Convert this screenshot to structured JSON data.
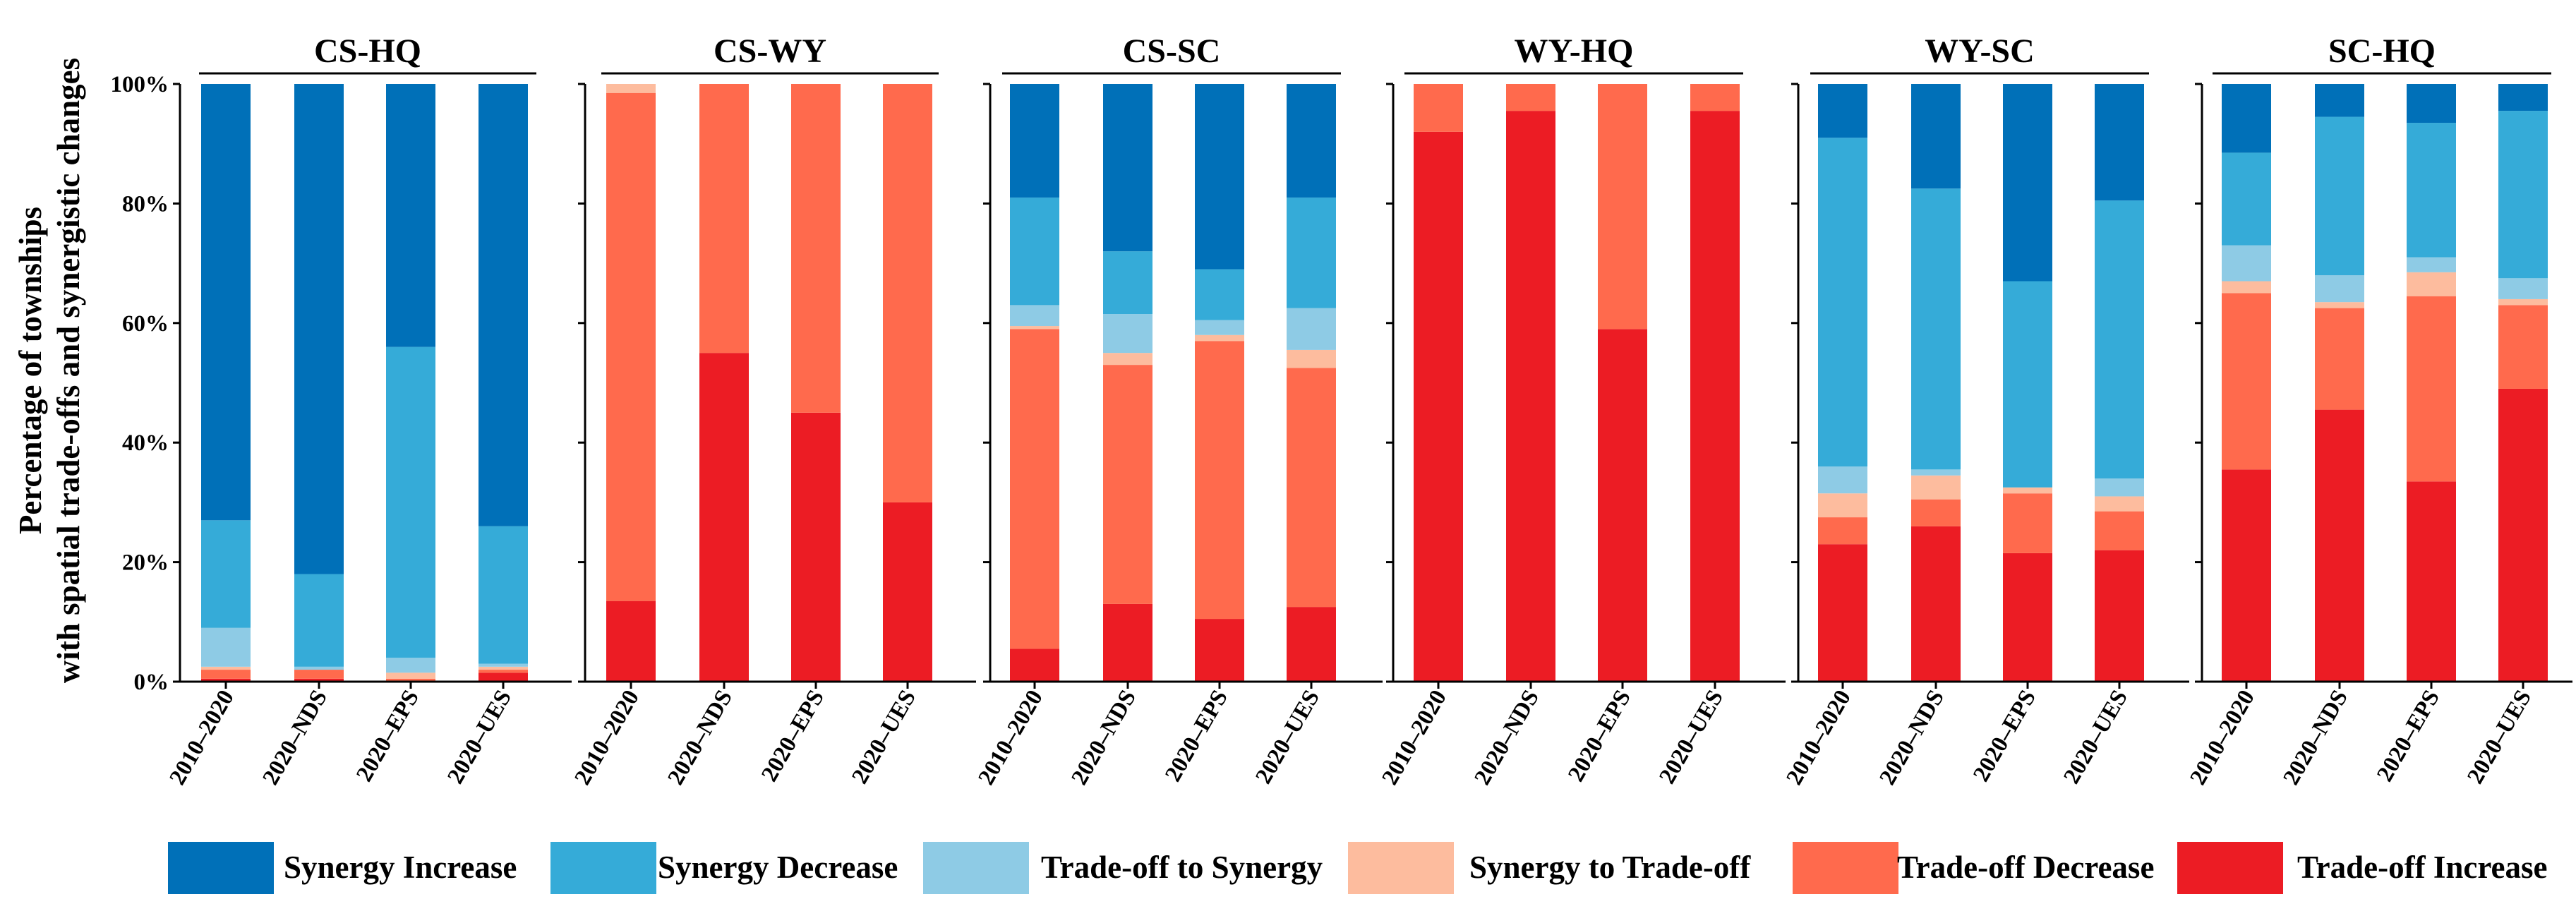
{
  "chart_data": {
    "type": "bar",
    "stacked": true,
    "ylabel_line1": "Percentage of townships",
    "ylabel_line2": "with spatial trade-offs and synergistic changes",
    "ylim": [
      0,
      100
    ],
    "yticks": [
      "0%",
      "20%",
      "40%",
      "60%",
      "80%",
      "100%"
    ],
    "categories": [
      "2010–2020",
      "2020–NDS",
      "2020–EPS",
      "2020–UES"
    ],
    "legend": [
      {
        "name": "Synergy Increase",
        "color": "#0070B8"
      },
      {
        "name": "Synergy Decrease",
        "color": "#35ABD8"
      },
      {
        "name": "Trade-off to Synergy",
        "color": "#8ECBE5"
      },
      {
        "name": "Synergy to Trade-off",
        "color": "#FDBC9E"
      },
      {
        "name": "Trade-off Decrease",
        "color": "#FF6A4D"
      },
      {
        "name": "Trade-off Increase",
        "color": "#EC1C24"
      }
    ],
    "panels": [
      {
        "title": "CS-HQ",
        "bars": [
          {
            "category": "2010–2020",
            "values": {
              "Trade-off Increase": 0.5,
              "Trade-off Decrease": 1.5,
              "Synergy to Trade-off": 0.5,
              "Trade-off to Synergy": 6.5,
              "Synergy Decrease": 18.0,
              "Synergy Increase": 73.0
            }
          },
          {
            "category": "2020–NDS",
            "values": {
              "Trade-off Increase": 0.5,
              "Trade-off Decrease": 1.5,
              "Synergy to Trade-off": 0.0,
              "Trade-off to Synergy": 0.5,
              "Synergy Decrease": 15.5,
              "Synergy Increase": 82.0
            }
          },
          {
            "category": "2020–EPS",
            "values": {
              "Trade-off Increase": 0.0,
              "Trade-off Decrease": 0.5,
              "Synergy to Trade-off": 1.0,
              "Trade-off to Synergy": 2.5,
              "Synergy Decrease": 52.0,
              "Synergy Increase": 44.0
            }
          },
          {
            "category": "2020–UES",
            "values": {
              "Trade-off Increase": 1.5,
              "Trade-off Decrease": 0.5,
              "Synergy to Trade-off": 0.5,
              "Trade-off to Synergy": 0.5,
              "Synergy Decrease": 23.0,
              "Synergy Increase": 74.0
            }
          }
        ]
      },
      {
        "title": "CS-WY",
        "bars": [
          {
            "category": "2010–2020",
            "values": {
              "Trade-off Increase": 13.5,
              "Trade-off Decrease": 85.0,
              "Synergy to Trade-off": 1.5,
              "Trade-off to Synergy": 0.0,
              "Synergy Decrease": 0.0,
              "Synergy Increase": 0.0
            }
          },
          {
            "category": "2020–NDS",
            "values": {
              "Trade-off Increase": 55.0,
              "Trade-off Decrease": 45.0,
              "Synergy to Trade-off": 0.0,
              "Trade-off to Synergy": 0.0,
              "Synergy Decrease": 0.0,
              "Synergy Increase": 0.0
            }
          },
          {
            "category": "2020–EPS",
            "values": {
              "Trade-off Increase": 45.0,
              "Trade-off Decrease": 55.0,
              "Synergy to Trade-off": 0.0,
              "Trade-off to Synergy": 0.0,
              "Synergy Decrease": 0.0,
              "Synergy Increase": 0.0
            }
          },
          {
            "category": "2020–UES",
            "values": {
              "Trade-off Increase": 30.0,
              "Trade-off Decrease": 70.0,
              "Synergy to Trade-off": 0.0,
              "Trade-off to Synergy": 0.0,
              "Synergy Decrease": 0.0,
              "Synergy Increase": 0.0
            }
          }
        ]
      },
      {
        "title": "CS-SC",
        "bars": [
          {
            "category": "2010–2020",
            "values": {
              "Trade-off Increase": 5.5,
              "Trade-off Decrease": 53.5,
              "Synergy to Trade-off": 0.5,
              "Trade-off to Synergy": 3.5,
              "Synergy Decrease": 18.0,
              "Synergy Increase": 19.0
            }
          },
          {
            "category": "2020–NDS",
            "values": {
              "Trade-off Increase": 13.0,
              "Trade-off Decrease": 40.0,
              "Synergy to Trade-off": 2.0,
              "Trade-off to Synergy": 6.5,
              "Synergy Decrease": 10.5,
              "Synergy Increase": 28.0
            }
          },
          {
            "category": "2020–EPS",
            "values": {
              "Trade-off Increase": 10.5,
              "Trade-off Decrease": 46.5,
              "Synergy to Trade-off": 1.0,
              "Trade-off to Synergy": 2.5,
              "Synergy Decrease": 8.5,
              "Synergy Increase": 31.0
            }
          },
          {
            "category": "2020–UES",
            "values": {
              "Trade-off Increase": 12.5,
              "Trade-off Decrease": 40.0,
              "Synergy to Trade-off": 3.0,
              "Trade-off to Synergy": 7.0,
              "Synergy Decrease": 18.5,
              "Synergy Increase": 19.0
            }
          }
        ]
      },
      {
        "title": "WY-HQ",
        "bars": [
          {
            "category": "2010–2020",
            "values": {
              "Trade-off Increase": 92.0,
              "Trade-off Decrease": 8.0,
              "Synergy to Trade-off": 0.0,
              "Trade-off to Synergy": 0.0,
              "Synergy Decrease": 0.0,
              "Synergy Increase": 0.0
            }
          },
          {
            "category": "2020–NDS",
            "values": {
              "Trade-off Increase": 95.5,
              "Trade-off Decrease": 4.5,
              "Synergy to Trade-off": 0.0,
              "Trade-off to Synergy": 0.0,
              "Synergy Decrease": 0.0,
              "Synergy Increase": 0.0
            }
          },
          {
            "category": "2020–EPS",
            "values": {
              "Trade-off Increase": 59.0,
              "Trade-off Decrease": 41.0,
              "Synergy to Trade-off": 0.0,
              "Trade-off to Synergy": 0.0,
              "Synergy Decrease": 0.0,
              "Synergy Increase": 0.0
            }
          },
          {
            "category": "2020–UES",
            "values": {
              "Trade-off Increase": 95.5,
              "Trade-off Decrease": 4.5,
              "Synergy to Trade-off": 0.0,
              "Trade-off to Synergy": 0.0,
              "Synergy Decrease": 0.0,
              "Synergy Increase": 0.0
            }
          }
        ]
      },
      {
        "title": "WY-SC",
        "bars": [
          {
            "category": "2010–2020",
            "values": {
              "Trade-off Increase": 23.0,
              "Trade-off Decrease": 4.5,
              "Synergy to Trade-off": 4.0,
              "Trade-off to Synergy": 4.5,
              "Synergy Decrease": 55.0,
              "Synergy Increase": 9.0
            }
          },
          {
            "category": "2020–NDS",
            "values": {
              "Trade-off Increase": 26.0,
              "Trade-off Decrease": 4.5,
              "Synergy to Trade-off": 4.0,
              "Trade-off to Synergy": 1.0,
              "Synergy Decrease": 47.0,
              "Synergy Increase": 17.5
            }
          },
          {
            "category": "2020–EPS",
            "values": {
              "Trade-off Increase": 21.5,
              "Trade-off Decrease": 10.0,
              "Synergy to Trade-off": 1.0,
              "Trade-off to Synergy": 0.0,
              "Synergy Decrease": 34.5,
              "Synergy Increase": 33.0
            }
          },
          {
            "category": "2020–UES",
            "values": {
              "Trade-off Increase": 22.0,
              "Trade-off Decrease": 6.5,
              "Synergy to Trade-off": 2.5,
              "Trade-off to Synergy": 3.0,
              "Synergy Decrease": 46.5,
              "Synergy Increase": 19.5
            }
          }
        ]
      },
      {
        "title": "SC-HQ",
        "bars": [
          {
            "category": "2010–2020",
            "values": {
              "Trade-off Increase": 35.5,
              "Trade-off Decrease": 29.5,
              "Synergy to Trade-off": 2.0,
              "Trade-off to Synergy": 6.0,
              "Synergy Decrease": 15.5,
              "Synergy Increase": 11.5
            }
          },
          {
            "category": "2020–NDS",
            "values": {
              "Trade-off Increase": 45.5,
              "Trade-off Decrease": 17.0,
              "Synergy to Trade-off": 1.0,
              "Trade-off to Synergy": 4.5,
              "Synergy Decrease": 26.5,
              "Synergy Increase": 5.5
            }
          },
          {
            "category": "2020–EPS",
            "values": {
              "Trade-off Increase": 33.5,
              "Trade-off Decrease": 31.0,
              "Synergy to Trade-off": 4.0,
              "Trade-off to Synergy": 2.5,
              "Synergy Decrease": 22.5,
              "Synergy Increase": 6.5
            }
          },
          {
            "category": "2020–UES",
            "values": {
              "Trade-off Increase": 49.0,
              "Trade-off Decrease": 14.0,
              "Synergy to Trade-off": 1.0,
              "Trade-off to Synergy": 3.5,
              "Synergy Decrease": 28.0,
              "Synergy Increase": 4.5
            }
          }
        ]
      }
    ]
  }
}
